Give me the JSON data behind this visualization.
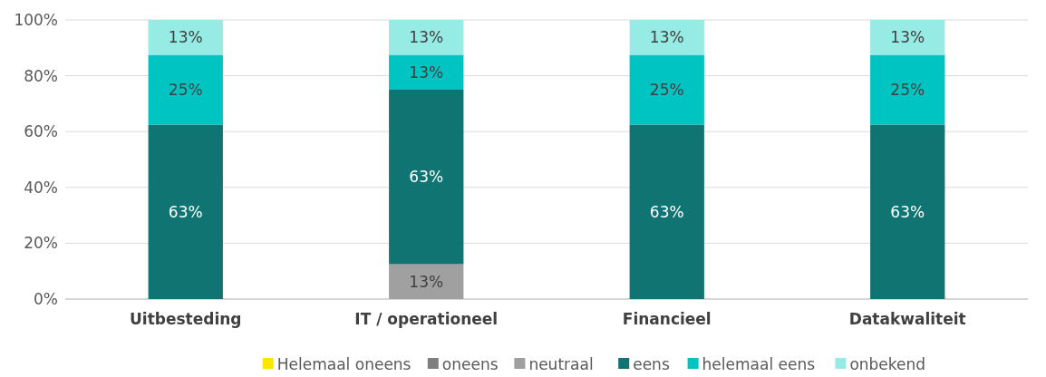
{
  "chart_data": {
    "type": "bar",
    "stacked": true,
    "categories": [
      "Uitbesteding",
      "IT / operationeel",
      "Financieel",
      "Datakwaliteit"
    ],
    "ylim": [
      0,
      100
    ],
    "yticks": [
      {
        "value": 0,
        "label": "0%"
      },
      {
        "value": 20,
        "label": "20%"
      },
      {
        "value": 40,
        "label": "40%"
      },
      {
        "value": 60,
        "label": "60%"
      },
      {
        "value": 80,
        "label": "80%"
      },
      {
        "value": 100,
        "label": "100%"
      }
    ],
    "grid": "y",
    "legend": "bottom",
    "series": [
      {
        "name": "Helemaal oneens",
        "color": "#ffe600",
        "values": [
          0,
          0,
          0,
          0
        ],
        "value_labels": [
          null,
          null,
          null,
          null
        ]
      },
      {
        "name": "oneens",
        "color": "#7f7f7f",
        "values": [
          0,
          0,
          0,
          0
        ],
        "value_labels": [
          null,
          null,
          null,
          null
        ]
      },
      {
        "name": "neutraal",
        "color": "#a0a0a0",
        "values": [
          0,
          12.5,
          0,
          0
        ],
        "value_labels": [
          null,
          "13%",
          null,
          null
        ]
      },
      {
        "name": "eens",
        "color": "#0f7472",
        "values": [
          62.5,
          62.5,
          62.5,
          62.5
        ],
        "value_labels": [
          "63%",
          "63%",
          "63%",
          "63%"
        ]
      },
      {
        "name": "helemaal eens",
        "color": "#00c4c1",
        "values": [
          25,
          12.5,
          25,
          25
        ],
        "value_labels": [
          "25%",
          "13%",
          "25%",
          "25%"
        ]
      },
      {
        "name": "onbekend",
        "color": "#96ebe4",
        "values": [
          12.5,
          12.5,
          12.5,
          12.5
        ],
        "value_labels": [
          "13%",
          "13%",
          "13%",
          "13%"
        ]
      }
    ]
  }
}
